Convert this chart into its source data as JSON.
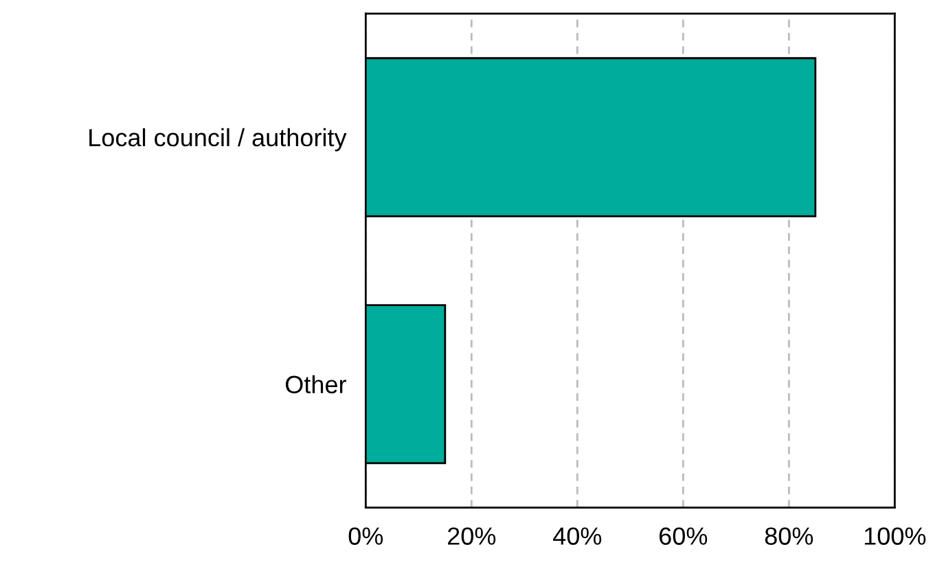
{
  "chart_data": {
    "type": "bar",
    "orientation": "horizontal",
    "categories": [
      "Local council / authority",
      "Other"
    ],
    "values": [
      85,
      15
    ],
    "color": "#00ac9b",
    "xlim": [
      0,
      100
    ],
    "xticks": [
      {
        "value": 0,
        "label": "0%"
      },
      {
        "value": 20,
        "label": "20%"
      },
      {
        "value": 40,
        "label": "40%"
      },
      {
        "value": 60,
        "label": "60%"
      },
      {
        "value": 80,
        "label": "80%"
      },
      {
        "value": 100,
        "label": "100%"
      }
    ],
    "grid": "x"
  }
}
